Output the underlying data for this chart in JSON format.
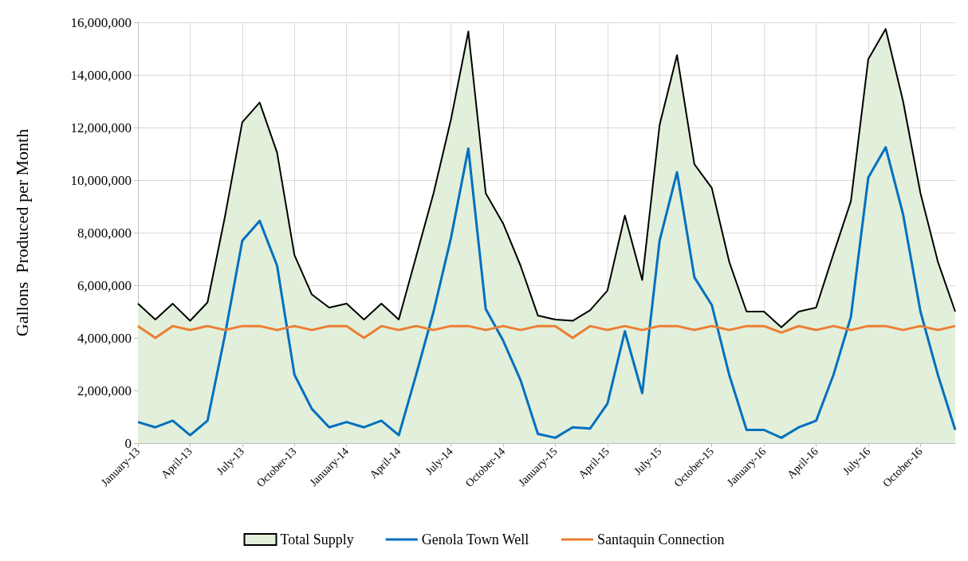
{
  "chart_data": {
    "type": "area",
    "ylabel": "Gallons  Produced per Month",
    "categories": [
      "January-13",
      null,
      null,
      "April-13",
      null,
      null,
      "July-13",
      null,
      null,
      "October-13",
      null,
      null,
      "January-14",
      null,
      null,
      "April-14",
      null,
      null,
      "July-14",
      null,
      null,
      "October-14",
      null,
      null,
      "January-15",
      null,
      null,
      "April-15",
      null,
      null,
      "July-15",
      null,
      null,
      "October-15",
      null,
      null,
      "January-16",
      null,
      null,
      "April-16",
      null,
      null,
      "July-16",
      null,
      null,
      "October-16",
      null,
      null
    ],
    "series": [
      {
        "name": "Total Supply",
        "color": "#e2efda",
        "values": [
          5300000,
          4700000,
          5300000,
          4650000,
          5350000,
          8600000,
          12200000,
          12950000,
          11050000,
          7150000,
          5650000,
          5150000,
          5300000,
          4700000,
          5300000,
          4700000,
          7100000,
          9500000,
          12300000,
          15650000,
          9500000,
          8350000,
          6750000,
          4850000,
          4700000,
          4650000,
          5050000,
          5800000,
          8650000,
          6200000,
          12100000,
          14750000,
          10600000,
          9700000,
          6900000,
          5000000,
          5000000,
          4400000,
          5000000,
          5150000,
          7200000,
          9200000,
          14600000,
          15750000,
          13000000,
          9500000,
          6900000,
          5000000
        ]
      },
      {
        "name": "Genola Town Well",
        "type": "line",
        "color": "#0070c0",
        "values": [
          800000,
          600000,
          850000,
          300000,
          850000,
          4100000,
          7700000,
          8450000,
          6750000,
          2600000,
          1300000,
          600000,
          800000,
          600000,
          850000,
          300000,
          2600000,
          5000000,
          7800000,
          11200000,
          5100000,
          3900000,
          2400000,
          350000,
          200000,
          600000,
          550000,
          1500000,
          4250000,
          1900000,
          7700000,
          10300000,
          6300000,
          5250000,
          2600000,
          500000,
          500000,
          200000,
          600000,
          850000,
          2600000,
          4800000,
          10100000,
          11250000,
          8700000,
          5000000,
          2600000,
          500000
        ]
      },
      {
        "name": "Santaquin Connection",
        "type": "line",
        "color": "#ed7d31",
        "values": [
          4450000,
          4000000,
          4450000,
          4300000,
          4450000,
          4300000,
          4450000,
          4450000,
          4300000,
          4450000,
          4300000,
          4450000,
          4450000,
          4000000,
          4450000,
          4300000,
          4450000,
          4300000,
          4450000,
          4450000,
          4300000,
          4450000,
          4300000,
          4450000,
          4450000,
          4000000,
          4450000,
          4300000,
          4450000,
          4300000,
          4450000,
          4450000,
          4300000,
          4450000,
          4300000,
          4450000,
          4450000,
          4200000,
          4450000,
          4300000,
          4450000,
          4300000,
          4450000,
          4450000,
          4300000,
          4450000,
          4300000,
          4450000
        ]
      }
    ],
    "ylim": [
      0,
      16000000
    ],
    "yticks": [
      0,
      {
        "value": 2000000,
        "label": "2,000,000"
      },
      {
        "value": 4000000,
        "label": "4,000,000"
      },
      {
        "value": 6000000,
        "label": "6,000,000"
      },
      {
        "value": 8000000,
        "label": "8,000,000"
      },
      {
        "value": 10000000,
        "label": "10,000,000"
      },
      {
        "value": 12000000,
        "label": "12,000,000"
      },
      {
        "value": 14000000,
        "label": "14,000,000"
      },
      {
        "value": 16000000,
        "label": "16,000,000"
      }
    ],
    "grid": true,
    "legend": "bottom",
    "marker": "none",
    "line_style": "solid"
  }
}
